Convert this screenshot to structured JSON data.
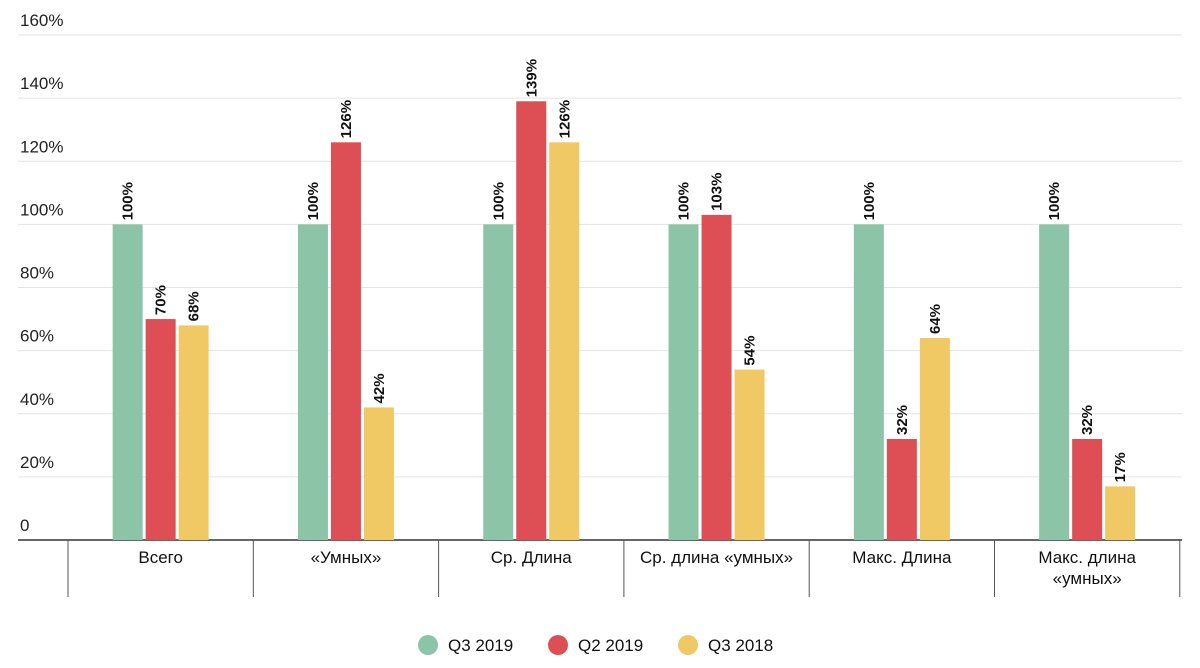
{
  "chart_data": {
    "type": "bar",
    "title": "",
    "xlabel": "",
    "ylabel": "",
    "ylim": [
      0,
      160
    ],
    "y_ticks": [
      0,
      20,
      40,
      60,
      80,
      100,
      120,
      140,
      160
    ],
    "y_tick_labels": [
      "0",
      "20%",
      "40%",
      "60%",
      "80%",
      "100%",
      "120%",
      "140%",
      "160%"
    ],
    "grid": true,
    "legend_position": "bottom-center",
    "categories": [
      [
        "Всего"
      ],
      [
        "«Умных»"
      ],
      [
        "Ср. Длина"
      ],
      [
        "Ср. длина «умных»"
      ],
      [
        "Макс. Длина"
      ],
      [
        "Макс. длина",
        "«умных»"
      ]
    ],
    "series": [
      {
        "name": "Q3 2019",
        "color": "#8cc4a8",
        "values": [
          100,
          100,
          100,
          100,
          100,
          100
        ],
        "labels": [
          "100%",
          "100%",
          "100%",
          "100%",
          "100%",
          "100%"
        ]
      },
      {
        "name": "Q2 2019",
        "color": "#dd4f54",
        "values": [
          70,
          126,
          139,
          103,
          32,
          32
        ],
        "labels": [
          "70%",
          "126%",
          "139%",
          "103%",
          "32%",
          "32%"
        ]
      },
      {
        "name": "Q3 2018",
        "color": "#f0c965",
        "values": [
          68,
          42,
          126,
          54,
          64,
          17
        ],
        "labels": [
          "68%",
          "42%",
          "126%",
          "54%",
          "64%",
          "17%"
        ]
      }
    ]
  }
}
